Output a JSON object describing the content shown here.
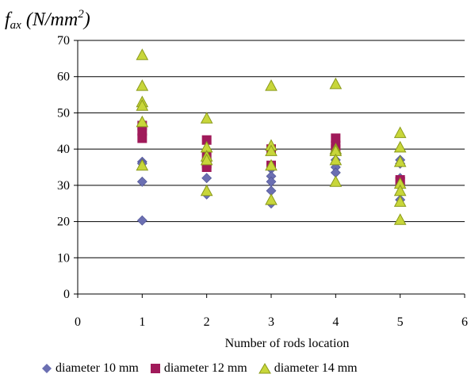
{
  "chart_data": {
    "type": "scatter",
    "ylabel_main": "f",
    "ylabel_sub": "ax",
    "ylabel_units_pre": " (N/mm",
    "ylabel_units_sup": "2",
    "ylabel_units_post": ")",
    "xlabel": "Number of rods location",
    "xlim": [
      0,
      6
    ],
    "ylim": [
      0,
      70
    ],
    "x_ticks": [
      0,
      1,
      2,
      3,
      4,
      5,
      6
    ],
    "y_ticks": [
      0,
      10,
      20,
      30,
      40,
      50,
      60,
      70
    ],
    "grid": "horizontal",
    "legend_position": "bottom",
    "series": [
      {
        "name": "diameter 10 mm",
        "color": "#6b6fb2",
        "marker": "diamond",
        "points": [
          [
            1,
            36.5
          ],
          [
            1,
            36
          ],
          [
            1,
            31
          ],
          [
            1,
            20.3
          ],
          [
            2,
            35.5
          ],
          [
            2,
            32
          ],
          [
            2,
            27.5
          ],
          [
            3,
            34.5
          ],
          [
            3,
            32.5
          ],
          [
            3,
            31
          ],
          [
            3,
            28.5
          ],
          [
            3,
            25
          ],
          [
            4,
            37
          ],
          [
            4,
            35
          ],
          [
            4,
            33.5
          ],
          [
            5,
            37
          ],
          [
            5,
            36
          ],
          [
            5,
            32
          ],
          [
            5,
            26
          ]
        ]
      },
      {
        "name": "diameter 12 mm",
        "color": "#a01a5a",
        "marker": "square",
        "points": [
          [
            1,
            46.5
          ],
          [
            1,
            45
          ],
          [
            1,
            43
          ],
          [
            2,
            42.5
          ],
          [
            2,
            38.5
          ],
          [
            2,
            36
          ],
          [
            2,
            35
          ],
          [
            3,
            40
          ],
          [
            3,
            35.5
          ],
          [
            4,
            43
          ],
          [
            4,
            41
          ],
          [
            4,
            40
          ],
          [
            5,
            31.5
          ],
          [
            5,
            31
          ]
        ]
      },
      {
        "name": "diameter 14 mm",
        "color": "#c8d63a",
        "marker": "triangle",
        "points": [
          [
            1,
            66
          ],
          [
            1,
            57.5
          ],
          [
            1,
            53
          ],
          [
            1,
            52
          ],
          [
            1,
            47.5
          ],
          [
            1,
            35.5
          ],
          [
            2,
            48.5
          ],
          [
            2,
            40.5
          ],
          [
            2,
            38
          ],
          [
            2,
            37
          ],
          [
            2,
            28.5
          ],
          [
            3,
            57.5
          ],
          [
            3,
            41
          ],
          [
            3,
            39.5
          ],
          [
            3,
            35.5
          ],
          [
            3,
            26
          ],
          [
            4,
            58
          ],
          [
            4,
            40
          ],
          [
            4,
            39.5
          ],
          [
            4,
            37
          ],
          [
            4,
            31
          ],
          [
            5,
            44.5
          ],
          [
            5,
            40.5
          ],
          [
            5,
            36.5
          ],
          [
            5,
            30.5
          ],
          [
            5,
            28.5
          ],
          [
            5,
            25.5
          ],
          [
            5,
            20.5
          ]
        ]
      }
    ]
  }
}
